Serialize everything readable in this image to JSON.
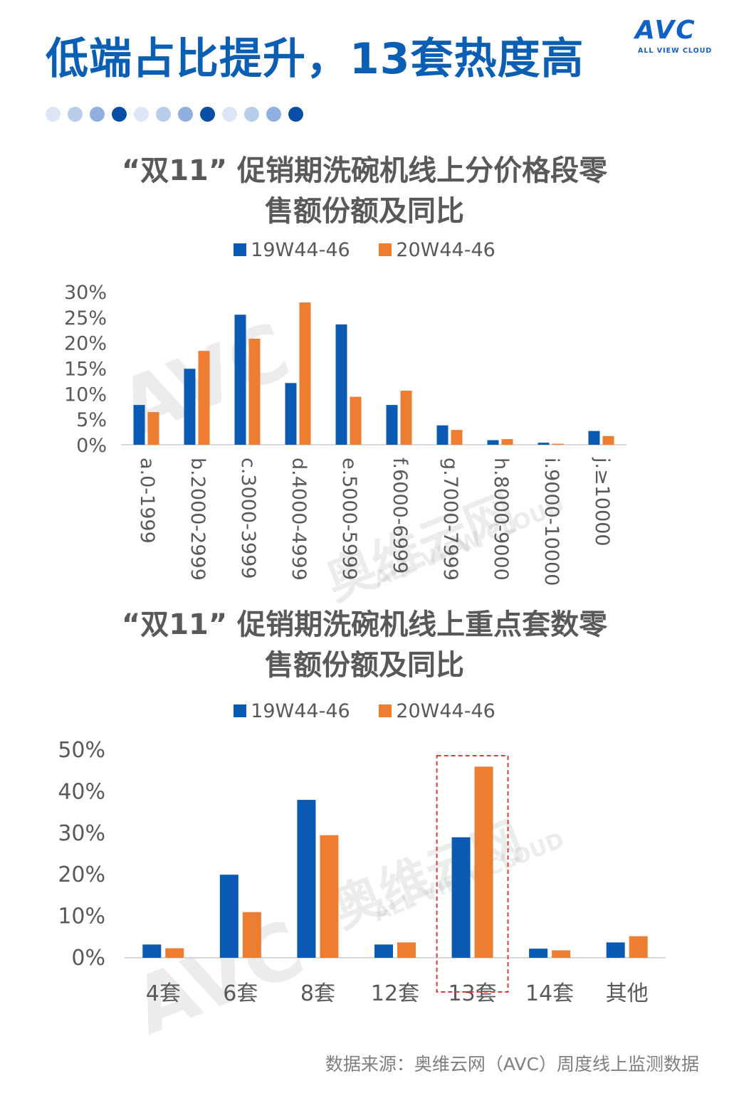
{
  "page": {
    "title": "低端占比提升，13套热度高",
    "source": "数据来源：奥维云网（AVC）周度线上监测数据"
  },
  "logo": {
    "text": "AVC",
    "subtext": "ALL VIEW CLOUD",
    "color": "#1160c4"
  },
  "watermark": {
    "text1": "奥维云网",
    "text2": "ALL VIEW CLOUD",
    "text3": "AVC"
  },
  "dots": [
    "#dce6f4",
    "#b8cde9",
    "#8fb0de",
    "#0a4fa6",
    "#dce6f4",
    "#b8cde9",
    "#8fb0de",
    "#0a4fa6",
    "#dce6f4",
    "#b8cde9",
    "#8fb0de",
    "#0a4fa6"
  ],
  "colors": {
    "series1": "#0a5ab4",
    "series2": "#ed7d31",
    "title": "#0a5fb4",
    "highlight": "#e03a3a"
  },
  "chart_data": [
    {
      "type": "bar",
      "title_line1": "“双11” 促销期洗碗机线上分价格段零",
      "title_line2": "售额份额及同比",
      "categories": [
        "a.0-1999",
        "b.2000-2999",
        "c.3000-3999",
        "d.4000-4999",
        "e.5000-5999",
        "f.6000-6999",
        "g.7000-7999",
        "h.8000-9000",
        "i.9000-10000",
        "j.≥10000"
      ],
      "series": [
        {
          "name": "19W44-46",
          "values": [
            7.8,
            14.9,
            25.5,
            12.1,
            23.6,
            7.8,
            3.8,
            0.9,
            0.4,
            2.7
          ]
        },
        {
          "name": "20W44-46",
          "values": [
            6.4,
            18.4,
            20.8,
            27.9,
            9.4,
            10.6,
            2.9,
            1.1,
            0.2,
            1.7
          ]
        }
      ],
      "yticks": [
        "0%",
        "5%",
        "10%",
        "15%",
        "20%",
        "25%",
        "30%"
      ],
      "ylim": [
        0,
        30
      ],
      "legend": "top"
    },
    {
      "type": "bar",
      "title_line1": "“双11” 促销期洗碗机线上重点套数零",
      "title_line2": "售额份额及同比",
      "categories": [
        "4套",
        "6套",
        "8套",
        "12套",
        "13套",
        "14套",
        "其他"
      ],
      "series": [
        {
          "name": "19W44-46",
          "values": [
            3.2,
            20.0,
            38.0,
            3.2,
            29.0,
            2.2,
            3.7
          ]
        },
        {
          "name": "20W44-46",
          "values": [
            2.3,
            11.0,
            29.5,
            3.7,
            46.0,
            1.8,
            5.2
          ]
        }
      ],
      "yticks": [
        "0%",
        "10%",
        "20%",
        "30%",
        "40%",
        "50%"
      ],
      "ylim": [
        0,
        50
      ],
      "legend": "top",
      "highlight_category": "13套"
    }
  ]
}
